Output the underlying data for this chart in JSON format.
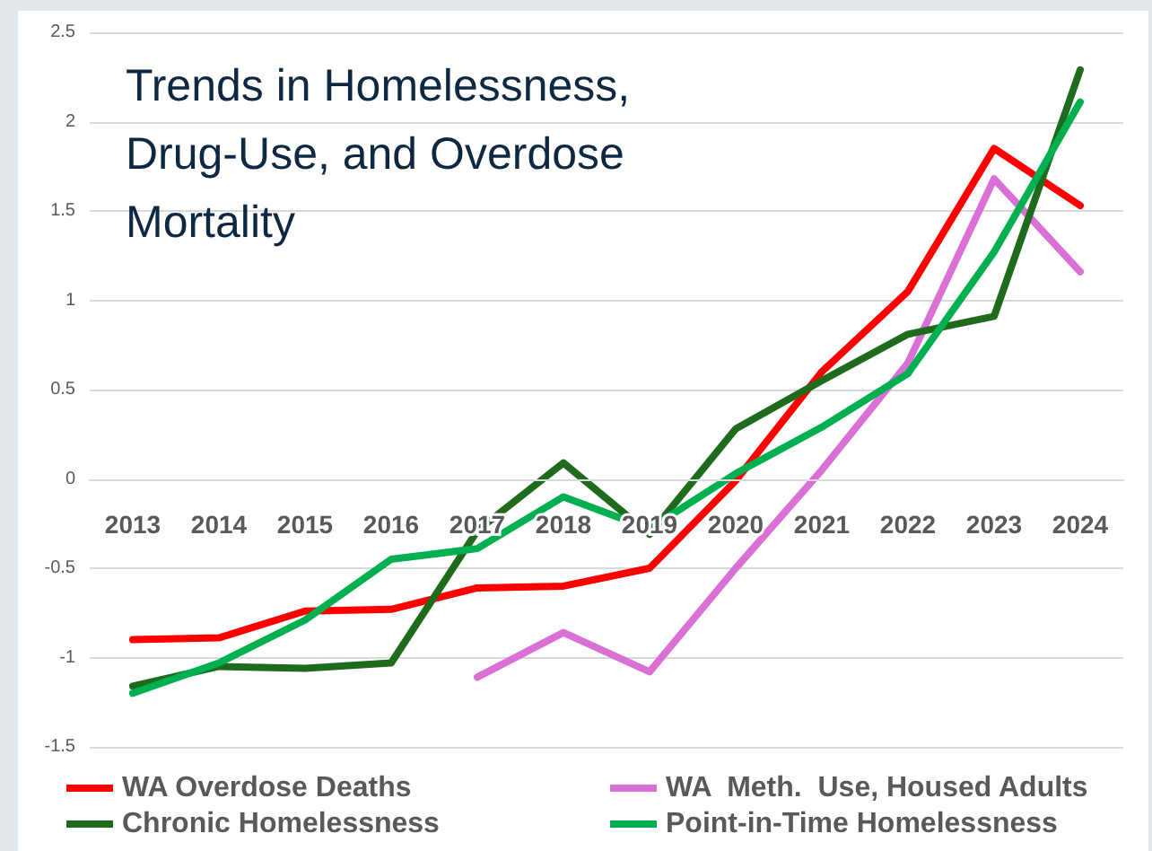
{
  "chart_data": {
    "type": "line",
    "title": "Trends in Homelessness,\nDrug-Use, and Overdose\nMortality",
    "categories": [
      "2013",
      "2014",
      "2015",
      "2016",
      "2017",
      "2018",
      "2019",
      "2020",
      "2021",
      "2022",
      "2023",
      "2024"
    ],
    "series": [
      {
        "name": "WA Overdose Deaths",
        "color": "#ff0000",
        "values": [
          -0.9,
          -0.89,
          -0.74,
          -0.73,
          -0.61,
          -0.6,
          -0.5,
          -0.01,
          0.6,
          1.05,
          1.85,
          1.53
        ]
      },
      {
        "name": "WA  Meth.  Use, Housed Adults",
        "color": "#da70d6",
        "values": [
          null,
          null,
          null,
          null,
          -1.11,
          -0.86,
          -1.08,
          -0.5,
          0.05,
          0.65,
          1.68,
          1.16
        ]
      },
      {
        "name": "Chronic Homelessness",
        "color": "#1e6b1e",
        "values": [
          -1.16,
          -1.05,
          -1.06,
          -1.03,
          -0.29,
          0.09,
          -0.31,
          0.28,
          0.55,
          0.81,
          0.91,
          2.29
        ]
      },
      {
        "name": "Point-in-Time Homelessness",
        "color": "#00b050",
        "values": [
          -1.2,
          -1.03,
          -0.79,
          -0.45,
          -0.39,
          -0.1,
          -0.28,
          0.03,
          0.29,
          0.59,
          1.27,
          2.11
        ]
      }
    ],
    "ylim": [
      -1.5,
      2.5
    ],
    "yticks": [
      -1.5,
      -1,
      -0.5,
      0,
      0.5,
      1,
      1.5,
      2,
      2.5
    ],
    "grid": "y",
    "legend": "bottom",
    "marker": "none",
    "line_style": "solid"
  }
}
